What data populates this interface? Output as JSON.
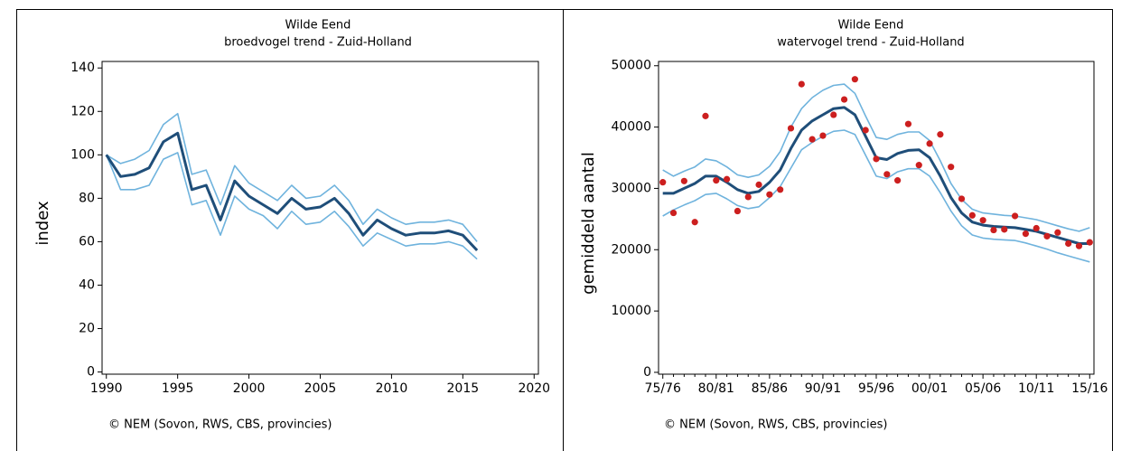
{
  "chart_data": [
    {
      "type": "line",
      "title": "Wilde Eend",
      "subtitle": "broedvogel trend - Zuid-Holland",
      "y_label": "index",
      "note": "© NEM (Sovon, RWS, CBS, provincies)",
      "x": [
        1990,
        1991,
        1992,
        1993,
        1994,
        1995,
        1996,
        1997,
        1998,
        1999,
        2000,
        2001,
        2002,
        2003,
        2004,
        2005,
        2006,
        2007,
        2008,
        2009,
        2010,
        2011,
        2012,
        2013,
        2014,
        2015,
        2016
      ],
      "xlim": [
        1989.7,
        2020.3
      ],
      "xticks": [
        1990,
        1995,
        2000,
        2005,
        2010,
        2015,
        2020
      ],
      "ylim": [
        -1,
        143
      ],
      "yticks": [
        0,
        20,
        40,
        60,
        80,
        100,
        120,
        140
      ],
      "series": [
        {
          "color": "#6fb3dd",
          "values": [
            100,
            96,
            98,
            102,
            114,
            119,
            91,
            93,
            77,
            95,
            87,
            83,
            79,
            86,
            80,
            81,
            86,
            79,
            68,
            75,
            71,
            68,
            69,
            69,
            70,
            68,
            60
          ]
        },
        {
          "color": "#6fb3dd",
          "values": [
            100,
            84,
            84,
            86,
            98,
            101,
            77,
            79,
            63,
            81,
            75,
            72,
            66,
            74,
            68,
            69,
            74,
            67,
            58,
            64,
            61,
            58,
            59,
            59,
            60,
            58,
            52
          ]
        },
        {
          "color": "#1f4e79",
          "values": [
            100,
            90,
            91,
            94,
            106,
            110,
            84,
            86,
            70,
            88,
            81,
            77,
            73,
            80,
            75,
            76,
            80,
            73,
            63,
            70,
            66,
            63,
            64,
            64,
            65,
            63,
            56
          ]
        }
      ]
    },
    {
      "type": "line",
      "title": "Wilde Eend",
      "subtitle": "watervogel trend - Zuid-Holland",
      "y_label": "gemiddeld aantal",
      "note": "© NEM (Sovon, RWS, CBS, provincies)",
      "categories": [
        "75/76",
        null,
        null,
        null,
        null,
        "80/81",
        null,
        null,
        null,
        null,
        "85/86",
        null,
        null,
        null,
        null,
        "90/91",
        null,
        null,
        null,
        null,
        "95/96",
        null,
        null,
        null,
        null,
        "00/01",
        null,
        null,
        null,
        null,
        "05/06",
        null,
        null,
        null,
        null,
        "10/11",
        null,
        null,
        null,
        null,
        "15/16"
      ],
      "ylim": [
        -300,
        50700
      ],
      "yticks": [
        0,
        10000,
        20000,
        30000,
        40000,
        50000
      ],
      "series": [
        {
          "color": "#6fb3dd",
          "values": [
            33000,
            32000,
            32800,
            33500,
            34800,
            34500,
            33500,
            32200,
            31800,
            32200,
            33600,
            36000,
            40000,
            43000,
            44800,
            46000,
            46800,
            47000,
            45500,
            41800,
            38300,
            38000,
            38800,
            39200,
            39200,
            37800,
            34500,
            30800,
            28200,
            26600,
            26000,
            25800,
            25600,
            25500,
            25200,
            24900,
            24400,
            23900,
            23400,
            23000,
            23600
          ]
        },
        {
          "color": "#6fb3dd",
          "values": [
            25500,
            26500,
            27300,
            28000,
            29000,
            29200,
            28300,
            27200,
            26700,
            27000,
            28500,
            30300,
            33300,
            36300,
            37500,
            38500,
            39300,
            39500,
            38800,
            35400,
            32000,
            31600,
            32700,
            33200,
            33200,
            32000,
            29300,
            26300,
            23900,
            22400,
            21900,
            21700,
            21600,
            21500,
            21100,
            20600,
            20100,
            19500,
            19000,
            18500,
            18000
          ]
        },
        {
          "color": "#1f4e79",
          "values": [
            29200,
            29200,
            30000,
            30800,
            32000,
            32000,
            31000,
            29800,
            29200,
            29500,
            31000,
            33000,
            36500,
            39500,
            41000,
            42000,
            43000,
            43200,
            42000,
            38500,
            35000,
            34700,
            35700,
            36200,
            36300,
            35000,
            32000,
            28500,
            26000,
            24500,
            24000,
            23800,
            23700,
            23600,
            23300,
            23000,
            22500,
            22000,
            21500,
            21000,
            21000
          ]
        },
        {
          "type": "scatter",
          "color": "#cc1f1f",
          "values": [
            31000,
            26000,
            31200,
            24500,
            41800,
            31300,
            31500,
            26300,
            28600,
            30600,
            29000,
            29800,
            39800,
            47000,
            38000,
            38600,
            42000,
            44500,
            47800,
            39500,
            34800,
            32300,
            31300,
            40500,
            33800,
            37300,
            38800,
            33500,
            28300,
            25600,
            24800,
            23200,
            23300,
            25500,
            22600,
            23500,
            22200,
            22800,
            21000,
            20600,
            21200
          ]
        }
      ]
    }
  ]
}
